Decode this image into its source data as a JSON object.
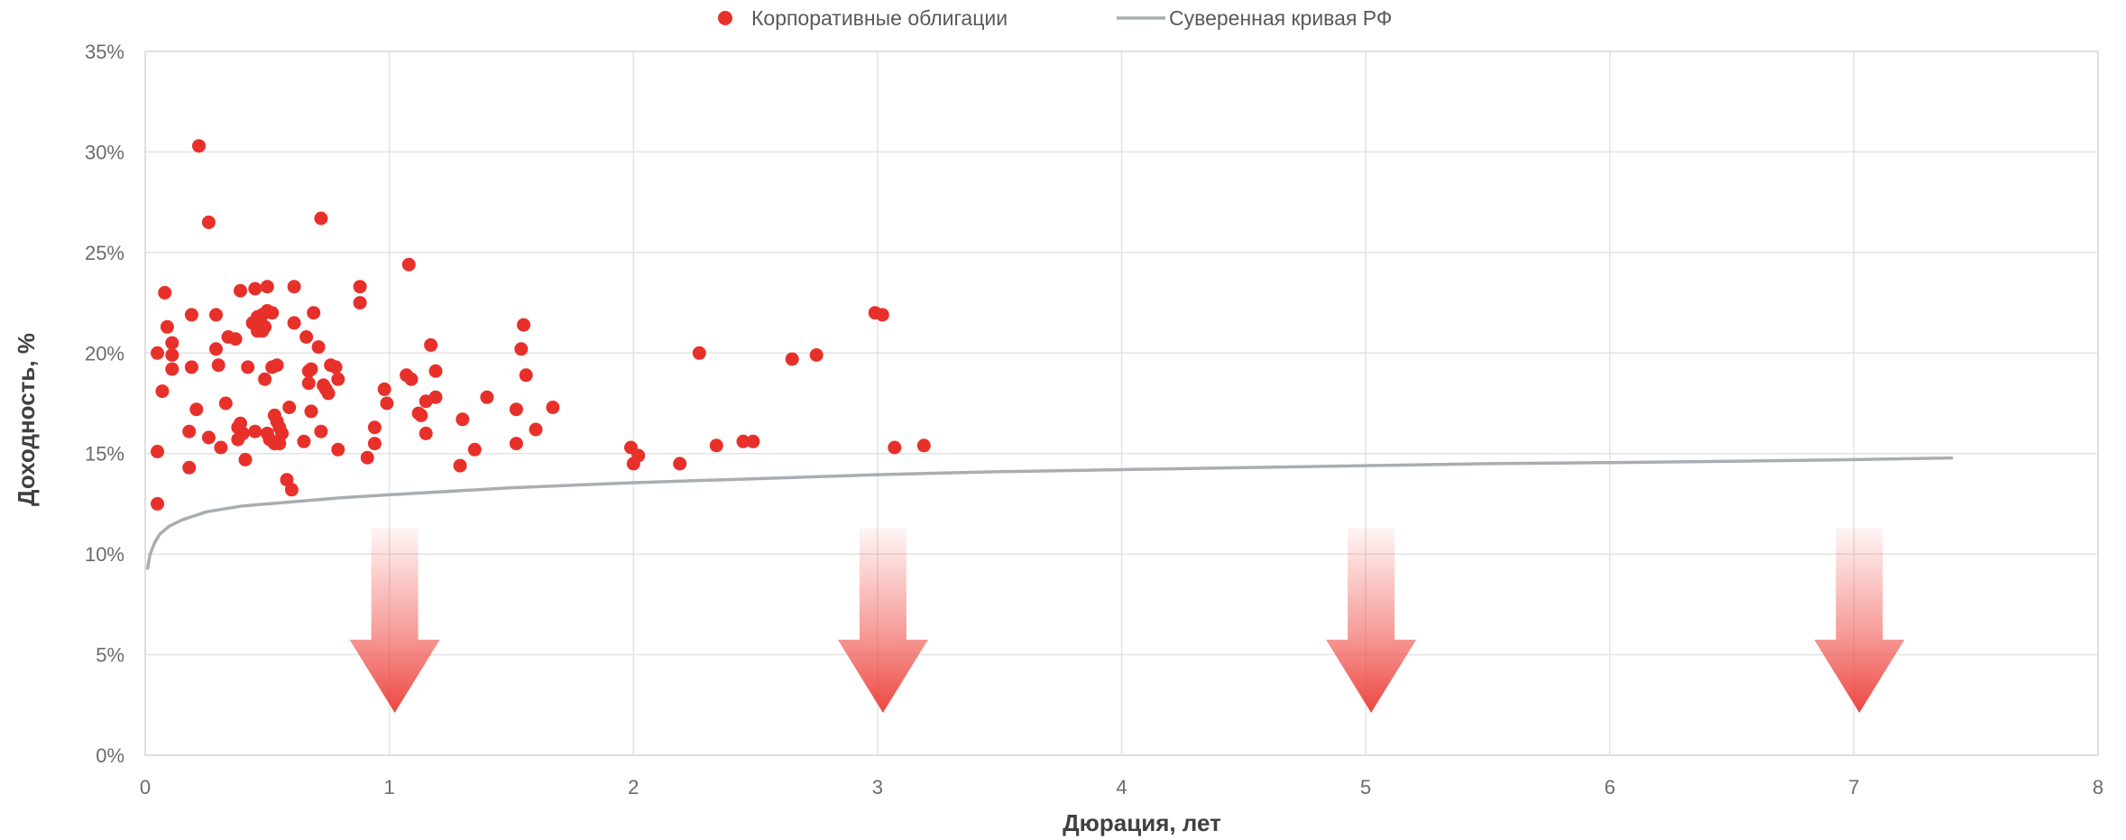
{
  "chart_data": {
    "type": "scatter",
    "xlabel": "Дюрация, лет",
    "ylabel": "Доходность, %",
    "xlim": [
      0,
      8
    ],
    "ylim": [
      0,
      35
    ],
    "x_ticks": [
      "0",
      "1",
      "2",
      "3",
      "4",
      "5",
      "6",
      "7",
      "8"
    ],
    "y_ticks": [
      "0%",
      "5%",
      "10%",
      "15%",
      "20%",
      "25%",
      "30%",
      "35%"
    ],
    "grid": true,
    "legend_position": "top-center",
    "legend": {
      "scatter_label": "Корпоративные облигации",
      "line_label": "Суверенная кривая РФ"
    },
    "colors": {
      "scatter": "#e8302a",
      "line": "#a9adb3",
      "arrow": "#f0504a",
      "grid": "#e3e3e3"
    },
    "arrows_at_x": [
      1,
      3,
      5,
      7
    ],
    "series": [
      {
        "name": "Корпоративные облигации",
        "kind": "scatter",
        "points": [
          [
            0.05,
            12.5
          ],
          [
            0.05,
            15.1
          ],
          [
            0.05,
            20.0
          ],
          [
            0.07,
            18.1
          ],
          [
            0.08,
            23.0
          ],
          [
            0.09,
            21.3
          ],
          [
            0.11,
            20.5
          ],
          [
            0.11,
            19.9
          ],
          [
            0.11,
            19.2
          ],
          [
            0.18,
            16.1
          ],
          [
            0.18,
            14.3
          ],
          [
            0.19,
            19.3
          ],
          [
            0.19,
            21.9
          ],
          [
            0.21,
            17.2
          ],
          [
            0.22,
            30.3
          ],
          [
            0.26,
            26.5
          ],
          [
            0.26,
            15.8
          ],
          [
            0.29,
            21.9
          ],
          [
            0.29,
            20.2
          ],
          [
            0.3,
            19.4
          ],
          [
            0.31,
            15.3
          ],
          [
            0.33,
            17.5
          ],
          [
            0.34,
            20.8
          ],
          [
            0.37,
            20.7
          ],
          [
            0.38,
            15.7
          ],
          [
            0.38,
            16.3
          ],
          [
            0.39,
            16.5
          ],
          [
            0.39,
            23.1
          ],
          [
            0.4,
            16.0
          ],
          [
            0.41,
            14.7
          ],
          [
            0.42,
            19.3
          ],
          [
            0.44,
            21.5
          ],
          [
            0.45,
            16.1
          ],
          [
            0.45,
            23.2
          ],
          [
            0.46,
            21.8
          ],
          [
            0.46,
            21.1
          ],
          [
            0.48,
            21.9
          ],
          [
            0.48,
            21.1
          ],
          [
            0.49,
            21.3
          ],
          [
            0.49,
            18.7
          ],
          [
            0.5,
            23.3
          ],
          [
            0.5,
            22.1
          ],
          [
            0.5,
            16.0
          ],
          [
            0.51,
            15.7
          ],
          [
            0.52,
            22.0
          ],
          [
            0.52,
            19.3
          ],
          [
            0.53,
            15.5
          ],
          [
            0.53,
            16.9
          ],
          [
            0.54,
            16.6
          ],
          [
            0.54,
            19.4
          ],
          [
            0.55,
            16.3
          ],
          [
            0.55,
            15.5
          ],
          [
            0.56,
            16.0
          ],
          [
            0.58,
            13.7
          ],
          [
            0.59,
            17.3
          ],
          [
            0.6,
            13.2
          ],
          [
            0.61,
            23.3
          ],
          [
            0.61,
            21.5
          ],
          [
            0.65,
            15.6
          ],
          [
            0.66,
            20.8
          ],
          [
            0.67,
            19.1
          ],
          [
            0.67,
            18.5
          ],
          [
            0.68,
            19.2
          ],
          [
            0.68,
            17.1
          ],
          [
            0.69,
            22.0
          ],
          [
            0.71,
            20.3
          ],
          [
            0.72,
            16.1
          ],
          [
            0.72,
            26.7
          ],
          [
            0.73,
            18.4
          ],
          [
            0.74,
            18.2
          ],
          [
            0.75,
            18.0
          ],
          [
            0.76,
            19.4
          ],
          [
            0.78,
            19.3
          ],
          [
            0.79,
            18.7
          ],
          [
            0.79,
            15.2
          ],
          [
            0.88,
            23.3
          ],
          [
            0.88,
            22.5
          ],
          [
            0.91,
            14.8
          ],
          [
            0.94,
            16.3
          ],
          [
            0.94,
            15.5
          ],
          [
            0.98,
            18.2
          ],
          [
            0.99,
            17.5
          ],
          [
            1.07,
            18.9
          ],
          [
            1.08,
            24.4
          ],
          [
            1.09,
            18.7
          ],
          [
            1.12,
            17.0
          ],
          [
            1.13,
            16.9
          ],
          [
            1.15,
            16.0
          ],
          [
            1.15,
            17.6
          ],
          [
            1.17,
            20.4
          ],
          [
            1.19,
            17.8
          ],
          [
            1.19,
            19.1
          ],
          [
            1.29,
            14.4
          ],
          [
            1.3,
            16.7
          ],
          [
            1.35,
            15.2
          ],
          [
            1.4,
            17.8
          ],
          [
            1.52,
            15.5
          ],
          [
            1.52,
            17.2
          ],
          [
            1.54,
            20.2
          ],
          [
            1.55,
            21.4
          ],
          [
            1.56,
            18.9
          ],
          [
            1.6,
            16.2
          ],
          [
            1.67,
            17.3
          ],
          [
            1.99,
            15.3
          ],
          [
            2.0,
            14.5
          ],
          [
            2.02,
            14.9
          ],
          [
            2.19,
            14.5
          ],
          [
            2.27,
            20.0
          ],
          [
            2.34,
            15.4
          ],
          [
            2.45,
            15.6
          ],
          [
            2.49,
            15.6
          ],
          [
            2.65,
            19.7
          ],
          [
            2.75,
            19.9
          ],
          [
            2.99,
            22.0
          ],
          [
            3.02,
            21.9
          ],
          [
            3.07,
            15.3
          ],
          [
            3.19,
            15.4
          ]
        ]
      },
      {
        "name": "Суверенная кривая РФ",
        "kind": "line",
        "points": [
          [
            0.01,
            9.3
          ],
          [
            0.02,
            10.0
          ],
          [
            0.04,
            10.6
          ],
          [
            0.06,
            11.0
          ],
          [
            0.1,
            11.4
          ],
          [
            0.15,
            11.7
          ],
          [
            0.25,
            12.1
          ],
          [
            0.4,
            12.4
          ],
          [
            0.6,
            12.6
          ],
          [
            0.8,
            12.8
          ],
          [
            1.0,
            12.95
          ],
          [
            1.5,
            13.3
          ],
          [
            2.0,
            13.55
          ],
          [
            2.5,
            13.75
          ],
          [
            3.0,
            13.95
          ],
          [
            3.5,
            14.1
          ],
          [
            4.0,
            14.2
          ],
          [
            4.5,
            14.3
          ],
          [
            5.0,
            14.4
          ],
          [
            5.5,
            14.5
          ],
          [
            6.0,
            14.55
          ],
          [
            6.5,
            14.62
          ],
          [
            7.0,
            14.7
          ],
          [
            7.4,
            14.78
          ]
        ]
      }
    ]
  }
}
